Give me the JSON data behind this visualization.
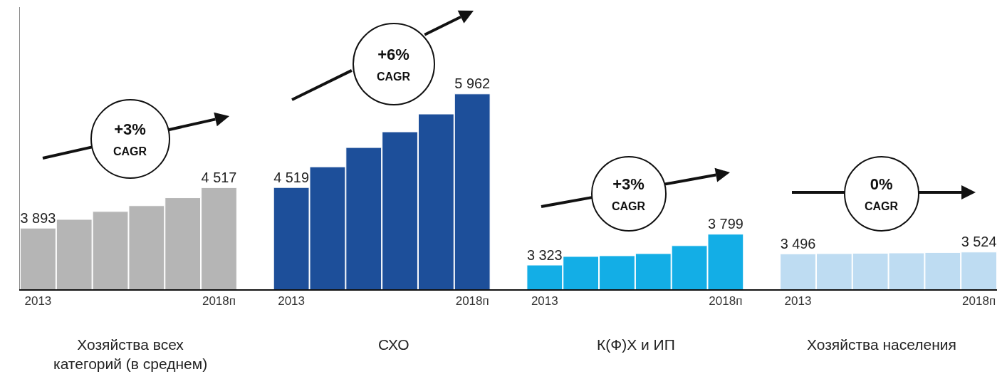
{
  "chart_data": {
    "type": "bar",
    "categories": [
      "2013",
      null,
      null,
      null,
      null,
      "2018п",
      null,
      "2013",
      null,
      null,
      null,
      null,
      "2018п",
      null,
      "2013",
      null,
      null,
      null,
      null,
      "2018п",
      null,
      "2013",
      null,
      null,
      null,
      null,
      "2018п"
    ],
    "values": [
      3893,
      4027,
      4149,
      4238,
      4361,
      4517,
      null,
      4519,
      4838,
      5135,
      5377,
      5652,
      5962,
      null,
      3323,
      3456,
      3467,
      3500,
      3622,
      3799,
      null,
      3496,
      3500,
      3505,
      3510,
      3517,
      3524
    ],
    "colors": [
      "#b5b5b5",
      "#b5b5b5",
      "#b5b5b5",
      "#b5b5b5",
      "#b5b5b5",
      "#b5b5b5",
      null,
      "#1d4f9a",
      "#1d4f9a",
      "#1d4f9a",
      "#1d4f9a",
      "#1d4f9a",
      "#1d4f9a",
      null,
      "#13aee6",
      "#13aee6",
      "#13aee6",
      "#13aee6",
      "#13aee6",
      "#13aee6",
      null,
      "#bedcf2",
      "#bedcf2",
      "#bedcf2",
      "#bedcf2",
      "#bedcf2",
      "#bedcf2"
    ],
    "value_labels": [
      "3 893",
      null,
      null,
      null,
      null,
      "4 517",
      null,
      "4 519",
      null,
      null,
      null,
      null,
      "5 962",
      null,
      "3 323",
      null,
      null,
      null,
      null,
      "3 799",
      null,
      "3 496",
      null,
      null,
      null,
      null,
      "3 524"
    ],
    "ylim": [
      2950,
      7300
    ],
    "tick_labels": "x",
    "grid": false,
    "annotations": [
      "Хозяйства всех\nкатегорий (в среднем)",
      "СХО",
      "К(Ф)Х и ИП",
      "Хозяйства населения",
      "+3%\nCAGR",
      "+6%\nCAGR",
      "+3%\nCAGR",
      "0%\nCAGR"
    ]
  }
}
